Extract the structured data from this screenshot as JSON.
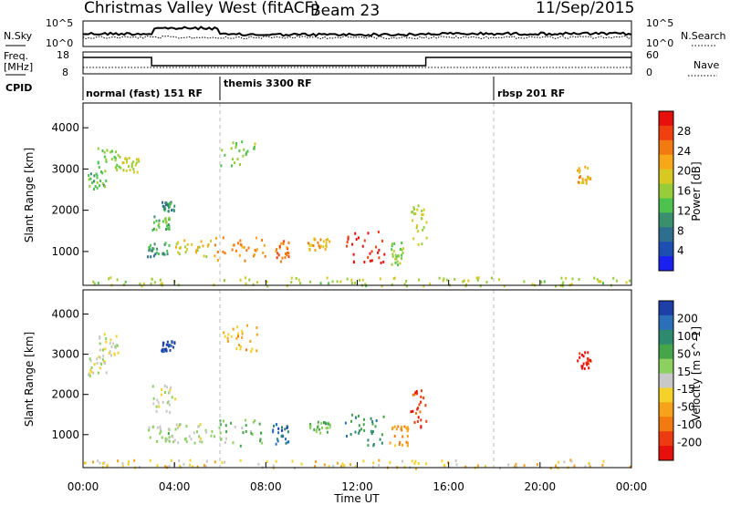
{
  "header": {
    "title": "Christmas Valley West (fitACF)",
    "beam": "Beam 23",
    "date": "11/Sep/2015"
  },
  "top_panels": {
    "nsky_label": "N.Sky",
    "nsearch_label": "N.Search",
    "nsky_ticks": [
      "10^5",
      "10^0"
    ],
    "nsearch_ticks": [
      "10^5",
      "10^0"
    ],
    "freq_label": "Freq.",
    "freq_unit": "[MHz]",
    "freq_ticks": [
      "18",
      "8"
    ],
    "nave_label": "Nave",
    "nave_ticks": [
      "60",
      "0"
    ],
    "cpid_label": "CPID"
  },
  "cpid_segments": [
    {
      "label": "normal (fast) 151 RF",
      "start_h": 0
    },
    {
      "label": "themis 3300 RF",
      "start_h": 6
    },
    {
      "label": "rbsp 201 RF",
      "start_h": 18
    }
  ],
  "axes": {
    "ylabel": "Slant Range [km]",
    "xlabel": "Time UT",
    "y_ticks": [
      "4000",
      "3000",
      "2000",
      "1000"
    ],
    "x_ticks": [
      "00:00",
      "04:00",
      "08:00",
      "12:00",
      "16:00",
      "20:00",
      "00:00"
    ]
  },
  "colorbars": {
    "power": {
      "label": "Power [dB]",
      "ticks": [
        "28",
        "24",
        "20",
        "16",
        "12",
        "8",
        "4"
      ],
      "colors": [
        "#e8100c",
        "#f04010",
        "#f27a10",
        "#f7a818",
        "#d7c922",
        "#98cd3a",
        "#4ec24e",
        "#3a8f6e",
        "#2e6e8e",
        "#1d4fb2",
        "#1a20f0"
      ]
    },
    "velocity": {
      "label": "Velocity [m s^-1]",
      "ticks": [
        "200",
        "100",
        "50",
        "15",
        "-15",
        "-50",
        "-100",
        "-200"
      ],
      "colors": [
        "#1f3fa8",
        "#2a6fb8",
        "#2e8a6e",
        "#44a54a",
        "#8cd060",
        "#c8c8c8",
        "#f4d22a",
        "#f6a21a",
        "#f27a10",
        "#ee3a10",
        "#e8100c"
      ]
    }
  },
  "chart_data": [
    {
      "type": "heatmap",
      "title": "",
      "parameter": "Power [dB]",
      "xlabel": "Time UT",
      "ylabel": "Slant Range [km]",
      "xlim_hours": [
        0,
        24
      ],
      "ylim_km": [
        180,
        4600
      ],
      "color_range": [
        0,
        30
      ],
      "scatter_regions": [
        {
          "t": [
            0.2,
            1.0
          ],
          "r": [
            2500,
            3000
          ],
          "value": 12
        },
        {
          "t": [
            0.6,
            1.6
          ],
          "r": [
            3000,
            3550
          ],
          "value": 14
        },
        {
          "t": [
            1.6,
            2.4
          ],
          "r": [
            2950,
            3300
          ],
          "value": 16
        },
        {
          "t": [
            3.0,
            3.8
          ],
          "r": [
            1550,
            1900
          ],
          "value": 12
        },
        {
          "t": [
            3.4,
            4.0
          ],
          "r": [
            2000,
            2250
          ],
          "value": 10
        },
        {
          "t": [
            2.8,
            3.8
          ],
          "r": [
            900,
            1250
          ],
          "value": 10
        },
        {
          "t": [
            4.0,
            5.6
          ],
          "r": [
            900,
            1300
          ],
          "value": 18
        },
        {
          "t": [
            5.6,
            8.0
          ],
          "r": [
            800,
            1400
          ],
          "value": 22
        },
        {
          "t": [
            8.4,
            9.0
          ],
          "r": [
            750,
            1300
          ],
          "value": 24
        },
        {
          "t": [
            9.8,
            10.8
          ],
          "r": [
            1050,
            1350
          ],
          "value": 20
        },
        {
          "t": [
            11.5,
            13.2
          ],
          "r": [
            750,
            1550
          ],
          "value": 28
        },
        {
          "t": [
            13.4,
            14.0
          ],
          "r": [
            700,
            1250
          ],
          "value": 14
        },
        {
          "t": [
            14.3,
            15.0
          ],
          "r": [
            1200,
            2150
          ],
          "value": 16
        },
        {
          "t": [
            6.0,
            7.8
          ],
          "r": [
            3100,
            3700
          ],
          "value": 14
        },
        {
          "t": [
            21.6,
            22.2
          ],
          "r": [
            2650,
            3100
          ],
          "value": 20
        },
        {
          "t": [
            0.0,
            24.0
          ],
          "r": [
            190,
            400
          ],
          "value": 16
        }
      ]
    },
    {
      "type": "heatmap",
      "title": "",
      "parameter": "Velocity [m s^-1]",
      "xlabel": "Time UT",
      "ylabel": "Slant Range [km]",
      "xlim_hours": [
        0,
        24
      ],
      "ylim_km": [
        180,
        4600
      ],
      "color_range": [
        -200,
        200
      ],
      "scatter_regions": [
        {
          "t": [
            0.2,
            1.0
          ],
          "r": [
            2450,
            3000
          ],
          "value": 0
        },
        {
          "t": [
            0.6,
            1.6
          ],
          "r": [
            3000,
            3550
          ],
          "value": 0
        },
        {
          "t": [
            3.0,
            4.0
          ],
          "r": [
            1550,
            2250
          ],
          "value": 0
        },
        {
          "t": [
            3.4,
            4.0
          ],
          "r": [
            3100,
            3350
          ],
          "value": 180
        },
        {
          "t": [
            2.8,
            4.0
          ],
          "r": [
            850,
            1250
          ],
          "value": 30
        },
        {
          "t": [
            4.0,
            5.4
          ],
          "r": [
            800,
            1300
          ],
          "value": 10
        },
        {
          "t": [
            5.4,
            7.8
          ],
          "r": [
            750,
            1400
          ],
          "value": 40
        },
        {
          "t": [
            8.2,
            9.0
          ],
          "r": [
            750,
            1300
          ],
          "value": 150
        },
        {
          "t": [
            9.8,
            10.8
          ],
          "r": [
            1050,
            1350
          ],
          "value": 60
        },
        {
          "t": [
            11.4,
            13.2
          ],
          "r": [
            750,
            1550
          ],
          "value": 100
        },
        {
          "t": [
            13.4,
            14.2
          ],
          "r": [
            700,
            1250
          ],
          "value": -80
        },
        {
          "t": [
            14.3,
            15.0
          ],
          "r": [
            1200,
            2150
          ],
          "value": -150
        },
        {
          "t": [
            6.0,
            7.8
          ],
          "r": [
            3100,
            3750
          ],
          "value": -60
        },
        {
          "t": [
            21.6,
            22.2
          ],
          "r": [
            2650,
            3100
          ],
          "value": -180
        },
        {
          "t": [
            0.0,
            24.0
          ],
          "r": [
            190,
            400
          ],
          "value": -40
        }
      ]
    }
  ]
}
